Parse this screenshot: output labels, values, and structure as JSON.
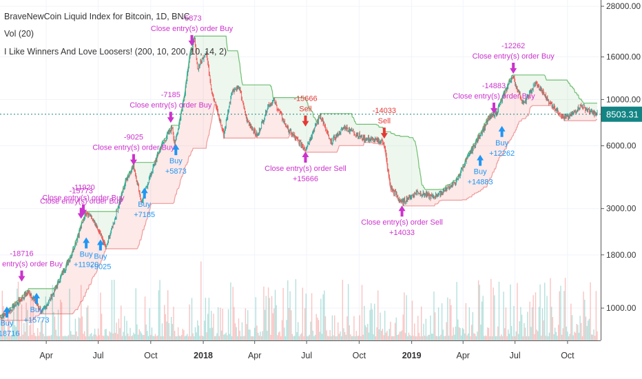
{
  "legend": {
    "symbol": "BraveNewCoin Liquid Index for Bitcoin, 1D, BNC",
    "volume": "Vol (20)",
    "strategy": "I Like Winners And Love Loosers! (200, 10, 200, 10, 14, 2)"
  },
  "chart_data": {
    "type": "line",
    "yscale": "log",
    "ylim": [
      700,
      30000
    ],
    "y_ticks": [
      "28000.00",
      "16000.00",
      "10000.00",
      "6000.00",
      "3000.00",
      "1800.00",
      "1000.00"
    ],
    "y_tick_values": [
      28000,
      16000,
      10000,
      6000,
      3000,
      1800,
      1000
    ],
    "x_ticks": [
      "Apr",
      "Jul",
      "Oct",
      "2018",
      "Apr",
      "Jul",
      "Oct",
      "2019",
      "Apr",
      "Jul",
      "Oct"
    ],
    "x_tick_dates": [
      "2017-04-01",
      "2017-07-01",
      "2017-10-01",
      "2018-01-01",
      "2018-04-01",
      "2018-07-01",
      "2018-10-01",
      "2019-01-01",
      "2019-04-01",
      "2019-07-01",
      "2019-10-01"
    ],
    "xlim": [
      "2017-01-10",
      "2019-11-28"
    ],
    "last_price": "8503.31",
    "last_price_value": 8503.31,
    "colors": {
      "up": "#26a69a",
      "down": "#ef5350",
      "buy": "#2196f3",
      "sell": "#e53935",
      "close": "#cc33cc",
      "upper_band": "#4caf50",
      "lower_band": "#ef9a9a",
      "price_line": "#138484"
    },
    "price_series": [
      [
        "2017-01-10",
        900
      ],
      [
        "2017-02-01",
        1000
      ],
      [
        "2017-03-01",
        1200
      ],
      [
        "2017-03-25",
        950
      ],
      [
        "2017-04-15",
        1200
      ],
      [
        "2017-05-15",
        1800
      ],
      [
        "2017-06-10",
        2900
      ],
      [
        "2017-06-20",
        2700
      ],
      [
        "2017-07-15",
        1950
      ],
      [
        "2017-08-01",
        2800
      ],
      [
        "2017-08-20",
        4200
      ],
      [
        "2017-09-01",
        4800
      ],
      [
        "2017-09-15",
        3200
      ],
      [
        "2017-10-01",
        4400
      ],
      [
        "2017-10-20",
        6000
      ],
      [
        "2017-11-08",
        7400
      ],
      [
        "2017-11-12",
        6000
      ],
      [
        "2017-11-28",
        10000
      ],
      [
        "2017-12-08",
        16000
      ],
      [
        "2017-12-17",
        19500
      ],
      [
        "2017-12-22",
        14000
      ],
      [
        "2018-01-06",
        17000
      ],
      [
        "2018-01-16",
        11000
      ],
      [
        "2018-02-06",
        6800
      ],
      [
        "2018-02-20",
        11000
      ],
      [
        "2018-03-05",
        11400
      ],
      [
        "2018-03-18",
        8000
      ],
      [
        "2018-04-06",
        6700
      ],
      [
        "2018-04-25",
        9400
      ],
      [
        "2018-05-05",
        9800
      ],
      [
        "2018-05-29",
        7200
      ],
      [
        "2018-06-29",
        5800
      ],
      [
        "2018-07-25",
        8400
      ],
      [
        "2018-08-12",
        6200
      ],
      [
        "2018-09-05",
        7400
      ],
      [
        "2018-10-10",
        6500
      ],
      [
        "2018-11-13",
        6300
      ],
      [
        "2018-11-25",
        3800
      ],
      [
        "2018-12-15",
        3200
      ],
      [
        "2019-01-10",
        3600
      ],
      [
        "2019-02-08",
        3400
      ],
      [
        "2019-03-20",
        4000
      ],
      [
        "2019-04-05",
        5000
      ],
      [
        "2019-05-15",
        8000
      ],
      [
        "2019-05-30",
        8700
      ],
      [
        "2019-06-26",
        13000
      ],
      [
        "2019-07-16",
        9500
      ],
      [
        "2019-08-06",
        12000
      ],
      [
        "2019-09-01",
        9600
      ],
      [
        "2019-09-25",
        8200
      ],
      [
        "2019-10-05",
        8300
      ],
      [
        "2019-10-25",
        9400
      ],
      [
        "2019-11-10",
        8700
      ],
      [
        "2019-11-22",
        8503
      ]
    ],
    "signals": [
      {
        "label": "Buy",
        "value": "+18716",
        "date": "2017-01-22",
        "price": 1050,
        "dir": "up",
        "color": "buy"
      },
      {
        "label": "Close entry(s) order Buy",
        "value": "-18716",
        "date": "2017-02-17",
        "price": 1300,
        "dir": "down",
        "color": "close"
      },
      {
        "label": "Buy",
        "value": "+15773",
        "date": "2017-03-15",
        "price": 1220,
        "dir": "up",
        "color": "buy"
      },
      {
        "label": "Close entry(s) order Buy",
        "value": "-15773",
        "date": "2017-06-01",
        "price": 2600,
        "dir": "down",
        "color": "close"
      },
      {
        "label": "Close entry(s) order Buy",
        "value": "-11920",
        "date": "2017-06-05",
        "price": 2700,
        "dir": "down",
        "color": "close"
      },
      {
        "label": "Buy",
        "value": "+11920",
        "date": "2017-06-10",
        "price": 2250,
        "dir": "up",
        "color": "buy"
      },
      {
        "label": "Buy",
        "value": "+9025",
        "date": "2017-07-05",
        "price": 2200,
        "dir": "up",
        "color": "buy"
      },
      {
        "label": "Close entry(s) order Buy",
        "value": "-9025",
        "date": "2017-09-01",
        "price": 4700,
        "dir": "down",
        "color": "close"
      },
      {
        "label": "Buy",
        "value": "+7185",
        "date": "2017-09-20",
        "price": 3900,
        "dir": "up",
        "color": "buy"
      },
      {
        "label": "Close entry(s) order Buy",
        "value": "-7185",
        "date": "2017-11-05",
        "price": 7500,
        "dir": "down",
        "color": "close"
      },
      {
        "label": "Buy",
        "value": "+5873",
        "date": "2017-11-14",
        "price": 6300,
        "dir": "up",
        "color": "buy"
      },
      {
        "label": "Close entry(s) order Buy",
        "value": "-5873",
        "date": "2017-12-12",
        "price": 17500,
        "dir": "down",
        "color": "close"
      },
      {
        "label": "Sell",
        "value": "-15666",
        "date": "2018-06-29",
        "price": 7200,
        "dir": "down",
        "color": "sell"
      },
      {
        "label": "Close entry(s) order Sell",
        "value": "+15666",
        "date": "2018-06-29",
        "price": 5800,
        "dir": "up",
        "color": "close"
      },
      {
        "label": "Sell",
        "value": "-14033",
        "date": "2018-11-14",
        "price": 6300,
        "dir": "down",
        "color": "sell"
      },
      {
        "label": "Close entry(s) order Sell",
        "value": "+14033",
        "date": "2018-12-15",
        "price": 3200,
        "dir": "up",
        "color": "close"
      },
      {
        "label": "Buy",
        "value": "+14883",
        "date": "2019-05-01",
        "price": 5600,
        "dir": "up",
        "color": "buy"
      },
      {
        "label": "Close entry(s) order Buy",
        "value": "-14883",
        "date": "2019-05-25",
        "price": 8300,
        "dir": "down",
        "color": "close"
      },
      {
        "label": "Buy",
        "value": "+12262",
        "date": "2019-06-08",
        "price": 7700,
        "dir": "up",
        "color": "buy"
      },
      {
        "label": "Close entry(s) order Buy",
        "value": "-12262",
        "date": "2019-06-28",
        "price": 12900,
        "dir": "down",
        "color": "close"
      }
    ]
  }
}
